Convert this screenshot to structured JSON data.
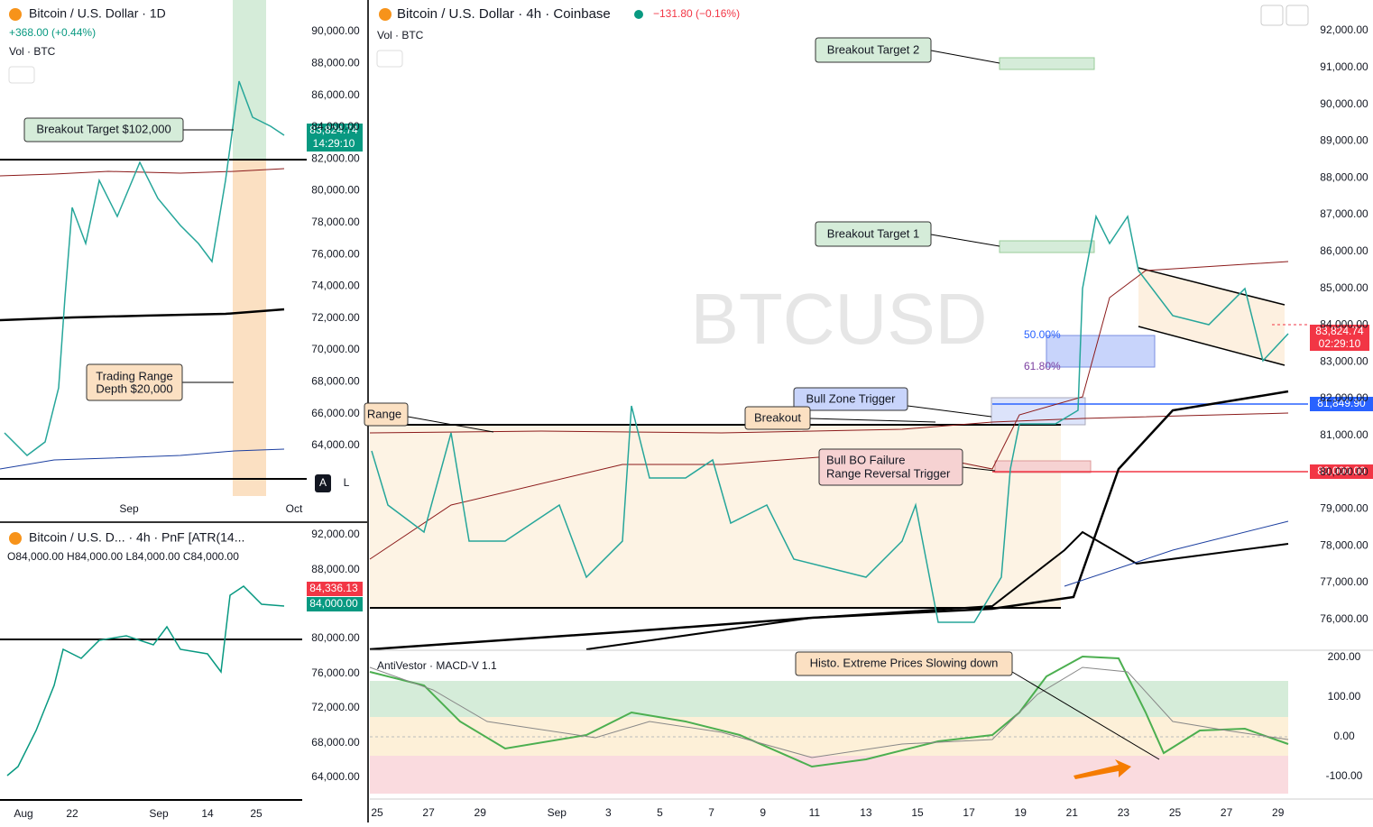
{
  "left_top": {
    "title": "Bitcoin / U.S. Dollar · 1D",
    "change": "+368.00 (+0.44%)",
    "volume": "Vol · BTC",
    "price_axis": [
      "90,000.00",
      "88,000.00",
      "86,000.00",
      "84,000.00",
      "82,000.00",
      "80,000.00",
      "78,000.00",
      "76,000.00",
      "74,000.00",
      "72,000.00",
      "70,000.00",
      "68,000.00",
      "66,000.00",
      "64,000.00"
    ],
    "last_price": "83,824.74",
    "countdown": "14:29:10",
    "time_axis": [
      "Sep",
      "Oct"
    ],
    "annotations": {
      "target": "Breakout Target $102,000",
      "range_line1": "Trading Range",
      "range_line2": "Depth $20,000"
    },
    "buttons": [
      "A",
      "L"
    ]
  },
  "left_bottom": {
    "title": "Bitcoin / U.S. D... · 4h · PnF [ATR(14...",
    "ohlc": "O84,000.00 H84,000.00 L84,000.00 C84,000.00",
    "price_axis": [
      "92,000.00",
      "88,000.00",
      "80,000.00",
      "76,000.00",
      "72,000.00",
      "68,000.00",
      "64,000.00"
    ],
    "price_high": "84,336.13",
    "price_last": "84,000.00",
    "time_axis": [
      "Aug",
      "22",
      "Sep",
      "14",
      "25"
    ]
  },
  "main": {
    "title": "Bitcoin / U.S. Dollar · 4h · Coinbase",
    "change": "−131.80 (−0.16%)",
    "volume": "Vol · BTC",
    "watermark": "BTCUSD",
    "price_axis": [
      "92,000.00",
      "91,000.00",
      "90,000.00",
      "89,000.00",
      "88,000.00",
      "87,000.00",
      "86,000.00",
      "85,000.00",
      "84,000.00",
      "83,000.00",
      "82,000.00",
      "81,000.00",
      "80,000.00",
      "79,000.00",
      "78,000.00",
      "77,000.00",
      "76,000.00"
    ],
    "last_price": "83,824.74",
    "countdown": "02:29:10",
    "bull_trigger_price": "81,849.90",
    "failure_price": "80,000.00",
    "fib_50": "50.00%",
    "fib_618": "61.80%",
    "annotations": {
      "target2": "Breakout Target 2",
      "target1": "Breakout Target 1",
      "bull_zone": "Bull Zone Trigger",
      "breakout": "Breakout",
      "range": "Range",
      "failure_line1": "Bull BO Failure",
      "failure_line2": "Range Reversal Trigger",
      "histo": "Histo. Extreme Prices Slowing down"
    },
    "indicator": "AntiVestor · MACD-V 1.1",
    "indicator_axis": [
      "200.00",
      "100.00",
      "0.00",
      "-100.00"
    ],
    "time_axis": [
      "25",
      "27",
      "29",
      "Sep",
      "3",
      "5",
      "7",
      "9",
      "11",
      "13",
      "15",
      "17",
      "19",
      "21",
      "23",
      "25",
      "27",
      "29"
    ]
  }
}
